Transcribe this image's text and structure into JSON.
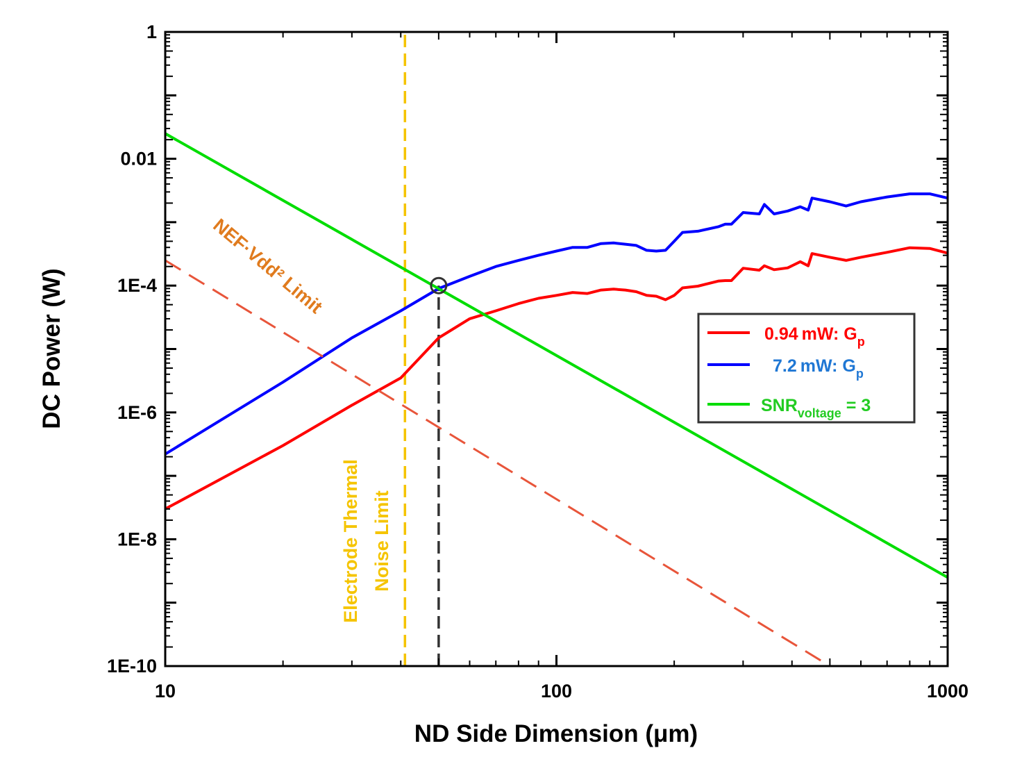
{
  "chart_data": {
    "type": "line",
    "xlabel": "ND Side Dimension (μm)",
    "ylabel": "DC Power (W)",
    "xscale": "log",
    "yscale": "log",
    "xlim": [
      10,
      1000
    ],
    "ylim": [
      1e-10,
      1
    ],
    "xticks": [
      {
        "value": 10,
        "label": "10"
      },
      {
        "value": 100,
        "label": "100"
      },
      {
        "value": 1000,
        "label": "1000"
      }
    ],
    "yticks": [
      {
        "value": 1,
        "label": "1"
      },
      {
        "value": 0.01,
        "label": "0.01"
      },
      {
        "value": 0.0001,
        "label": "1E-4"
      },
      {
        "value": 1e-06,
        "label": "1E-6"
      },
      {
        "value": 1e-08,
        "label": "1E-8"
      },
      {
        "value": 1e-10,
        "label": "1E-10"
      }
    ],
    "grid": false,
    "legend_position": "right",
    "colors": {
      "red": "#ff0000",
      "blue": "#0000ff",
      "green": "#00dd00",
      "nef": "#e8553a",
      "electrode": "#f5c400",
      "marker": "#333333",
      "legend_red_text": "#ff0000",
      "legend_blue_text": "#1f77d4",
      "legend_green_text": "#22cc22",
      "nef_text": "#e07b1e"
    },
    "series": [
      {
        "legend": {
          "main": "0.94 mW: G",
          "sub": "p",
          "tail": ""
        },
        "color": "#ff0000",
        "style": "solid",
        "x": [
          10,
          20,
          30,
          40,
          50,
          60,
          70,
          80,
          90,
          100,
          110,
          120,
          130,
          140,
          150,
          160,
          170,
          180,
          190,
          200,
          210,
          230,
          260,
          270,
          280,
          300,
          330,
          340,
          360,
          390,
          420,
          440,
          450,
          500,
          550,
          600,
          700,
          800,
          900,
          1000
        ],
        "y": [
          3e-08,
          3e-07,
          1.3e-06,
          3.5e-06,
          1.5e-05,
          3e-05,
          4e-05,
          5.2e-05,
          6.3e-05,
          7e-05,
          7.8e-05,
          7.5e-05,
          8.5e-05,
          8.8e-05,
          8.5e-05,
          8e-05,
          7e-05,
          6.8e-05,
          6e-05,
          7e-05,
          9.2e-05,
          9.8e-05,
          0.000118,
          0.00012,
          0.00012,
          0.000188,
          0.000175,
          0.000205,
          0.000178,
          0.00019,
          0.000238,
          0.000205,
          0.00032,
          0.00028,
          0.00025,
          0.00028,
          0.000335,
          0.000395,
          0.000385,
          0.000325
        ]
      },
      {
        "legend": {
          "main": "7.2 mW: G",
          "sub": "p",
          "tail": ""
        },
        "color": "#0000ff",
        "style": "solid",
        "x": [
          10,
          20,
          30,
          40,
          50,
          60,
          70,
          80,
          90,
          100,
          110,
          120,
          130,
          140,
          150,
          160,
          170,
          180,
          190,
          200,
          210,
          230,
          260,
          270,
          280,
          300,
          330,
          340,
          360,
          390,
          420,
          440,
          450,
          500,
          550,
          600,
          700,
          800,
          900,
          1000
        ],
        "y": [
          2.2e-07,
          3e-06,
          1.5e-05,
          4e-05,
          9e-05,
          0.00014,
          0.0002,
          0.00025,
          0.0003,
          0.00035,
          0.0004,
          0.0004,
          0.00046,
          0.00047,
          0.00045,
          0.00043,
          0.00036,
          0.00035,
          0.00036,
          0.0005,
          0.00069,
          0.00072,
          0.00085,
          0.00093,
          0.00093,
          0.00142,
          0.00135,
          0.0019,
          0.00135,
          0.0015,
          0.00175,
          0.00155,
          0.0024,
          0.0021,
          0.0018,
          0.0021,
          0.0025,
          0.0028,
          0.0028,
          0.0024
        ]
      },
      {
        "legend": {
          "main": "SNR",
          "sub": "voltage",
          "tail": " = 3"
        },
        "color": "#00dd00",
        "style": "solid",
        "x": [
          10,
          1000
        ],
        "y": [
          0.025,
          2.5e-09
        ]
      },
      {
        "color": "#e8553a",
        "style": "dashed",
        "x": [
          10,
          500
        ],
        "y": [
          0.00025,
          1e-10
        ]
      }
    ],
    "vlines": [
      {
        "x": 41,
        "color": "#f5c400",
        "y_from": 1e-10,
        "y_to": 1
      },
      {
        "x": 50,
        "color": "#333333",
        "y_from": 1e-10,
        "y_to": 0.0001
      }
    ],
    "marker": {
      "x": 50,
      "y": 0.0001,
      "shape": "circle"
    },
    "annotations": [
      {
        "text": "NEF·Vdd² Limit",
        "color": "#e07b1e"
      },
      {
        "lines": [
          "Electrode  Thermal",
          "Noise Limit"
        ],
        "color": "#f5c400"
      }
    ]
  }
}
